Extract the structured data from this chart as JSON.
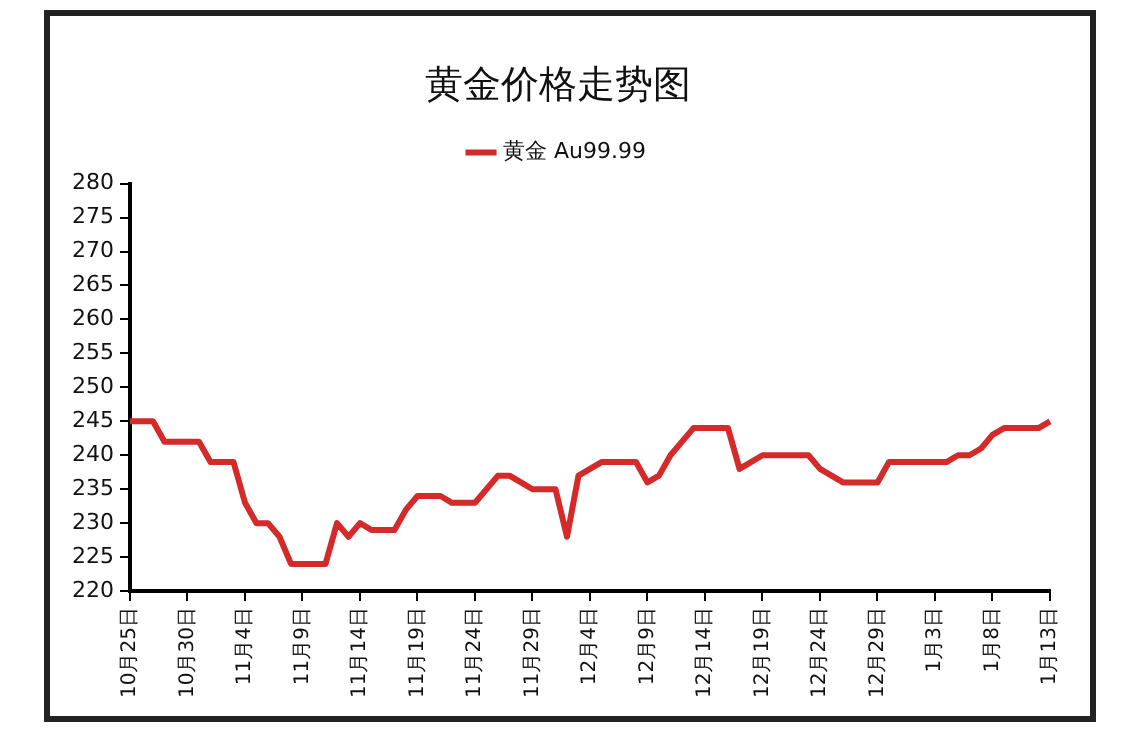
{
  "chart_data": {
    "type": "line",
    "title": "黄金价格走势图",
    "categories": [
      "10月25日",
      null,
      null,
      null,
      null,
      "10月30日",
      null,
      null,
      null,
      null,
      "11月4日",
      null,
      null,
      null,
      null,
      "11月9日",
      null,
      null,
      null,
      null,
      "11月14日",
      null,
      null,
      null,
      null,
      "11月19日",
      null,
      null,
      null,
      null,
      "11月24日",
      null,
      null,
      null,
      null,
      "11月29日",
      null,
      null,
      null,
      null,
      "12月4日",
      null,
      null,
      null,
      null,
      "12月9日",
      null,
      null,
      null,
      null,
      "12月14日",
      null,
      null,
      null,
      null,
      "12月19日",
      null,
      null,
      null,
      null,
      "12月24日",
      null,
      null,
      null,
      null,
      "12月29日",
      null,
      null,
      null,
      null,
      "1月3日",
      null,
      null,
      null,
      null,
      "1月8日",
      null,
      null,
      null,
      null,
      "1月13日"
    ],
    "series": [
      {
        "name": "黄金 Au99.99",
        "color": "#d42a2a",
        "values": [
          245,
          245,
          245,
          242,
          242,
          242,
          242,
          239,
          239,
          239,
          233,
          230,
          230,
          228,
          224,
          224,
          224,
          224,
          230,
          228,
          230,
          229,
          229,
          229,
          232,
          234,
          234,
          234,
          233,
          233,
          233,
          235,
          237,
          237,
          236,
          235,
          235,
          235,
          228,
          237,
          238,
          239,
          239,
          239,
          239,
          236,
          237,
          240,
          242,
          244,
          244,
          244,
          244,
          238,
          239,
          240,
          240,
          240,
          240,
          240,
          238,
          237,
          236,
          236,
          236,
          236,
          239,
          239,
          239,
          239,
          239,
          239,
          240,
          240,
          241,
          243,
          244,
          244,
          244,
          244,
          245
        ]
      }
    ],
    "ylim": [
      220,
      280
    ],
    "yticks": [
      220,
      225,
      230,
      235,
      240,
      245,
      250,
      255,
      260,
      265,
      270,
      275,
      280
    ],
    "grid": false,
    "legend": "top",
    "marker": "none",
    "line_style": "solid"
  }
}
